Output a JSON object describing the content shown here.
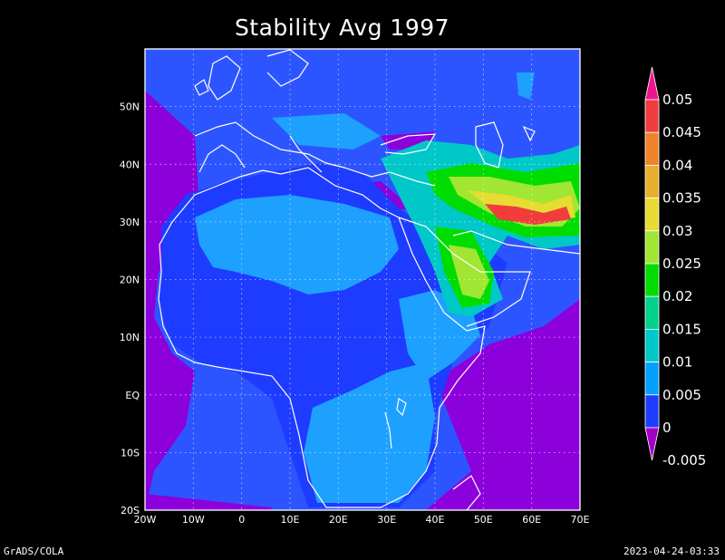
{
  "title": "Stability Avg 1997",
  "x_ticks": [
    "20W",
    "10W",
    "0",
    "10E",
    "20E",
    "30E",
    "40E",
    "50E",
    "60E",
    "70E"
  ],
  "y_ticks": [
    "50N",
    "40N",
    "30N",
    "20N",
    "10N",
    "EQ",
    "10S",
    "20S"
  ],
  "colorbar": {
    "labels": [
      "0.05",
      "0.045",
      "0.04",
      "0.035",
      "0.03",
      "0.025",
      "0.02",
      "0.015",
      "0.01",
      "0.005",
      "0",
      "-0.005"
    ],
    "colors": [
      "#f0148c",
      "#f03c3c",
      "#f08228",
      "#e6af2d",
      "#e6dc32",
      "#a0e632",
      "#00dc00",
      "#00d28c",
      "#00c8c8",
      "#00a0ff",
      "#1e3cff",
      "#a000c8"
    ]
  },
  "chart_data": {
    "type": "heatmap",
    "title": "Stability Avg 1997",
    "xlim": [
      -20,
      70
    ],
    "ylim": [
      -20,
      60
    ],
    "x_ticks": [
      "20W",
      "10W",
      "0",
      "10E",
      "20E",
      "30E",
      "40E",
      "50E",
      "60E",
      "70E"
    ],
    "y_ticks": [
      "50N",
      "40N",
      "30N",
      "20N",
      "10N",
      "EQ",
      "10S",
      "20S"
    ],
    "colorbar_levels": [
      0.05,
      0.045,
      0.04,
      0.035,
      0.03,
      0.025,
      0.02,
      0.015,
      0.01,
      0.005,
      0,
      -0.005
    ],
    "grid": true,
    "legend": "right"
  },
  "footer": {
    "left": "GrADS/COLA",
    "right": "2023-04-24-03:33"
  }
}
